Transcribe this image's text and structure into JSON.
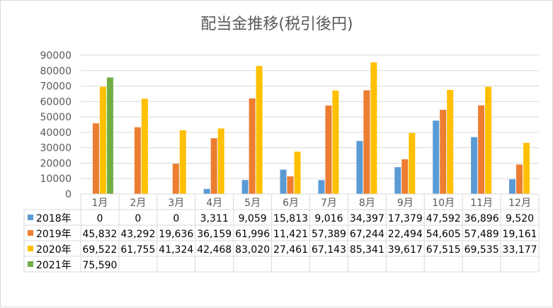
{
  "chart_data": {
    "type": "bar",
    "title": "配当金推移(税引後円)",
    "categories": [
      "1月",
      "2月",
      "3月",
      "4月",
      "5月",
      "6月",
      "7月",
      "8月",
      "9月",
      "10月",
      "11月",
      "12月"
    ],
    "ylim": [
      0,
      90000
    ],
    "yticks": [
      "0",
      "10000",
      "20000",
      "30000",
      "40000",
      "50000",
      "60000",
      "70000",
      "80000",
      "90000"
    ],
    "grid": true,
    "legend": "data-table-left",
    "series": [
      {
        "name": "2018年",
        "color": "#5b9bd5",
        "values": [
          0,
          0,
          0,
          3311,
          9059,
          15813,
          9016,
          34397,
          17379,
          47592,
          36896,
          9520
        ],
        "labels": [
          "0",
          "0",
          "0",
          "3,311",
          "9,059",
          "15,813",
          "9,016",
          "34,397",
          "17,379",
          "47,592",
          "36,896",
          "9,520"
        ]
      },
      {
        "name": "2019年",
        "color": "#ed7d31",
        "values": [
          45832,
          43292,
          19636,
          36159,
          61996,
          11421,
          57389,
          67244,
          22494,
          54605,
          57489,
          19161
        ],
        "labels": [
          "45,832",
          "43,292",
          "19,636",
          "36,159",
          "61,996",
          "11,421",
          "57,389",
          "67,244",
          "22,494",
          "54,605",
          "57,489",
          "19,161"
        ]
      },
      {
        "name": "2020年",
        "color": "#ffc000",
        "values": [
          69522,
          61755,
          41324,
          42468,
          83020,
          27461,
          67143,
          85341,
          39617,
          67515,
          69535,
          33177
        ],
        "labels": [
          "69,522",
          "61,755",
          "41,324",
          "42,468",
          "83,020",
          "27,461",
          "67,143",
          "85,341",
          "39,617",
          "67,515",
          "69,535",
          "33,177"
        ]
      },
      {
        "name": "2021年",
        "color": "#70ad47",
        "values": [
          75590,
          null,
          null,
          null,
          null,
          null,
          null,
          null,
          null,
          null,
          null,
          null
        ],
        "labels": [
          "75,590",
          "",
          "",
          "",
          "",
          "",
          "",
          "",
          "",
          "",
          "",
          ""
        ]
      }
    ]
  }
}
